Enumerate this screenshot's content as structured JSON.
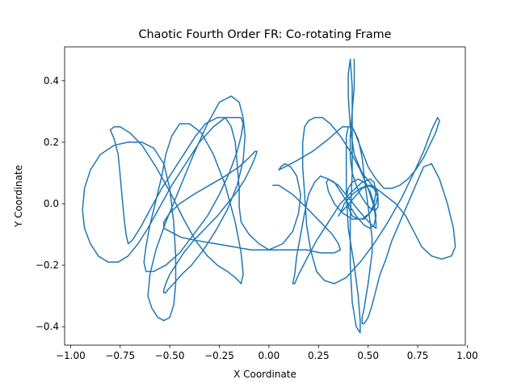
{
  "chart_data": {
    "type": "line",
    "title": "Chaotic Fourth Order FR: Co-rotating Frame",
    "xlabel": "X Coordinate",
    "ylabel": "Y Coordinate",
    "xlim": [
      -1.03,
      0.99
    ],
    "ylim": [
      -0.46,
      0.51
    ],
    "xticks": [
      -1.0,
      -0.75,
      -0.5,
      -0.25,
      0.0,
      0.25,
      0.5,
      0.75,
      1.0
    ],
    "xtick_labels": [
      "−1.00",
      "−0.75",
      "−0.50",
      "−0.25",
      "0.00",
      "0.25",
      "0.50",
      "0.75",
      "1.00"
    ],
    "yticks": [
      -0.4,
      -0.2,
      0.0,
      0.2,
      0.4
    ],
    "ytick_labels": [
      "−0.4",
      "−0.2",
      "0.0",
      "0.2",
      "0.4"
    ],
    "grid": false,
    "line_color": "#1f77b4",
    "series": [
      {
        "x": [
          0.02,
          0.05,
          0.12,
          0.2,
          0.26,
          0.32,
          0.35,
          0.36,
          0.33,
          0.26,
          0.19,
          0.14,
          0.1,
          0.06,
          0.0,
          -0.05,
          -0.1,
          -0.14,
          -0.15,
          -0.15,
          -0.16,
          -0.17,
          -0.19,
          -0.22,
          -0.26,
          -0.32,
          -0.37,
          -0.42,
          -0.48,
          -0.54,
          -0.6,
          -0.65,
          -0.69,
          -0.71,
          -0.72,
          -0.73,
          -0.74,
          -0.75,
          -0.76,
          -0.78,
          -0.8,
          -0.78,
          -0.75,
          -0.7,
          -0.64,
          -0.57,
          -0.5,
          -0.43,
          -0.37,
          -0.31,
          -0.26,
          -0.21,
          -0.17,
          -0.14,
          -0.13,
          -0.14,
          -0.17,
          -0.22,
          -0.28,
          -0.34,
          -0.4,
          -0.45,
          -0.49,
          -0.52,
          -0.54,
          -0.57,
          -0.6,
          -0.62,
          -0.63,
          -0.62,
          -0.58,
          -0.52,
          -0.45,
          -0.38,
          -0.31,
          -0.25,
          -0.2,
          -0.16,
          -0.14,
          -0.13,
          -0.14,
          -0.17,
          -0.22,
          -0.28,
          -0.35,
          -0.42,
          -0.49,
          -0.55,
          -0.61,
          -0.66,
          -0.71,
          -0.76,
          -0.81,
          -0.86,
          -0.9,
          -0.93,
          -0.94,
          -0.93,
          -0.9,
          -0.85,
          -0.78,
          -0.71,
          -0.64,
          -0.58,
          -0.53,
          -0.5,
          -0.48,
          -0.47,
          -0.47,
          -0.48,
          -0.5,
          -0.53,
          -0.56,
          -0.59,
          -0.61,
          -0.6,
          -0.57,
          -0.52,
          -0.45,
          -0.38,
          -0.31,
          -0.25,
          -0.19,
          -0.15,
          -0.13,
          -0.12,
          -0.13,
          -0.16,
          -0.21,
          -0.27,
          -0.33,
          -0.39,
          -0.44,
          -0.48,
          -0.51,
          -0.52,
          -0.53,
          -0.53,
          -0.52,
          -0.5,
          -0.47,
          -0.43,
          -0.38,
          -0.32,
          -0.26,
          -0.21,
          -0.16,
          -0.12,
          -0.09,
          -0.07,
          -0.06,
          -0.07,
          -0.1,
          -0.15,
          -0.22,
          -0.3,
          -0.38,
          -0.45,
          -0.5,
          -0.53,
          -0.53,
          -0.5,
          -0.44,
          -0.36,
          -0.27,
          -0.18,
          -0.09,
          0.0,
          0.07,
          0.12,
          0.15,
          0.16,
          0.14,
          0.11,
          0.08,
          0.06,
          0.05,
          0.05,
          0.08,
          0.14,
          0.22,
          0.3,
          0.37,
          0.42,
          0.45,
          0.47,
          0.48,
          0.49,
          0.5,
          0.51,
          0.52,
          0.52,
          0.51,
          0.5,
          0.49,
          0.48,
          0.47,
          0.47,
          0.48,
          0.5,
          0.52,
          0.54,
          0.56,
          0.59,
          0.62,
          0.66,
          0.7,
          0.74,
          0.78,
          0.82,
          0.86,
          0.9,
          0.93,
          0.94,
          0.92,
          0.87,
          0.82,
          0.77,
          0.73,
          0.69,
          0.64,
          0.58,
          0.52,
          0.47,
          0.43,
          0.41,
          0.4,
          0.4,
          0.41,
          0.42,
          0.42,
          0.42,
          0.41,
          0.41,
          0.42,
          0.44,
          0.46,
          0.46,
          0.45,
          0.43,
          0.4,
          0.39,
          0.39,
          0.39,
          0.4,
          0.42,
          0.44,
          0.47,
          0.5,
          0.54,
          0.58,
          0.62,
          0.66,
          0.7,
          0.74,
          0.78,
          0.81,
          0.84,
          0.86,
          0.85,
          0.82,
          0.78,
          0.73,
          0.67,
          0.6,
          0.53,
          0.46,
          0.39,
          0.33,
          0.28,
          0.24,
          0.21,
          0.19,
          0.18,
          0.17,
          0.17,
          0.18,
          0.2,
          0.23,
          0.27,
          0.31,
          0.36,
          0.41,
          0.46,
          0.5,
          0.53,
          0.54,
          0.54,
          0.52,
          0.49,
          0.45,
          0.4,
          0.35,
          0.3,
          0.26,
          0.23,
          0.2,
          0.18,
          0.16,
          0.14,
          0.13,
          0.12,
          0.13,
          0.15,
          0.19,
          0.24,
          0.3,
          0.36,
          0.42,
          0.47,
          0.51,
          0.53,
          0.54,
          0.53,
          0.51,
          0.48,
          0.45,
          0.42,
          0.4,
          0.39,
          0.4,
          0.42,
          0.45,
          0.48,
          0.51,
          0.53,
          0.54,
          0.53,
          0.51,
          0.48,
          0.44,
          0.4,
          0.36,
          0.33,
          0.3,
          0.29,
          0.3,
          0.33,
          0.37,
          0.42,
          0.47,
          0.51,
          0.54,
          0.55,
          0.54,
          0.51,
          0.47,
          0.43,
          0.39,
          0.36,
          0.35,
          0.36,
          0.38,
          0.42,
          0.46,
          0.5,
          0.53,
          0.55,
          0.55,
          0.54,
          0.52,
          0.49,
          0.46,
          0.44,
          0.42,
          0.41,
          0.41,
          0.42,
          0.43,
          0.43,
          0.43
        ],
        "y": [
          0.06,
          0.06,
          0.03,
          -0.02,
          -0.06,
          -0.1,
          -0.13,
          -0.15,
          -0.16,
          -0.16,
          -0.15,
          -0.15,
          -0.15,
          -0.15,
          -0.15,
          -0.13,
          -0.1,
          -0.06,
          -0.01,
          0.05,
          0.13,
          0.2,
          0.25,
          0.28,
          0.28,
          0.26,
          0.22,
          0.17,
          0.11,
          0.05,
          -0.02,
          -0.08,
          -0.12,
          -0.13,
          -0.1,
          -0.05,
          0.02,
          0.09,
          0.16,
          0.21,
          0.24,
          0.25,
          0.25,
          0.23,
          0.19,
          0.12,
          0.04,
          -0.05,
          -0.12,
          -0.17,
          -0.2,
          -0.22,
          -0.24,
          -0.26,
          -0.23,
          -0.16,
          -0.06,
          0.06,
          0.16,
          0.23,
          0.26,
          0.26,
          0.22,
          0.16,
          0.09,
          0.01,
          -0.07,
          -0.14,
          -0.19,
          -0.22,
          -0.22,
          -0.2,
          -0.16,
          -0.1,
          -0.04,
          0.03,
          0.1,
          0.17,
          0.22,
          0.26,
          0.28,
          0.28,
          0.28,
          0.25,
          0.2,
          0.13,
          0.06,
          -0.01,
          -0.08,
          -0.13,
          -0.17,
          -0.19,
          -0.19,
          -0.17,
          -0.13,
          -0.08,
          -0.02,
          0.05,
          0.11,
          0.16,
          0.19,
          0.2,
          0.2,
          0.18,
          0.13,
          0.05,
          -0.06,
          -0.17,
          -0.26,
          -0.33,
          -0.37,
          -0.38,
          -0.37,
          -0.34,
          -0.3,
          -0.23,
          -0.15,
          -0.06,
          0.05,
          0.16,
          0.26,
          0.33,
          0.35,
          0.33,
          0.28,
          0.22,
          0.14,
          0.06,
          -0.02,
          -0.09,
          -0.15,
          -0.2,
          -0.23,
          -0.26,
          -0.28,
          -0.29,
          -0.29,
          -0.28,
          -0.26,
          -0.23,
          -0.2,
          -0.16,
          -0.12,
          -0.08,
          -0.04,
          0.0,
          0.04,
          0.08,
          0.12,
          0.15,
          0.17,
          0.17,
          0.15,
          0.12,
          0.09,
          0.06,
          0.03,
          0.0,
          -0.03,
          -0.06,
          -0.08,
          -0.09,
          -0.11,
          -0.12,
          -0.13,
          -0.14,
          -0.15,
          -0.15,
          -0.13,
          -0.09,
          -0.03,
          0.03,
          0.09,
          0.12,
          0.13,
          0.12,
          0.11,
          0.11,
          0.12,
          0.14,
          0.17,
          0.21,
          0.25,
          0.25,
          0.21,
          0.15,
          0.09,
          0.04,
          -0.01,
          -0.06,
          -0.11,
          -0.16,
          -0.21,
          -0.26,
          -0.3,
          -0.34,
          -0.37,
          -0.39,
          -0.39,
          -0.37,
          -0.33,
          -0.28,
          -0.23,
          -0.18,
          -0.12,
          -0.06,
          0.0,
          0.06,
          0.12,
          0.13,
          0.08,
          0.0,
          -0.08,
          -0.14,
          -0.17,
          -0.18,
          -0.17,
          -0.14,
          -0.09,
          -0.04,
          0.0,
          0.03,
          0.06,
          0.1,
          0.16,
          0.25,
          0.35,
          0.42,
          0.47,
          0.38,
          0.25,
          0.1,
          -0.05,
          -0.2,
          -0.32,
          -0.4,
          -0.42,
          -0.38,
          -0.3,
          -0.2,
          -0.08,
          0.04,
          0.15,
          0.22,
          0.25,
          0.25,
          0.22,
          0.17,
          0.12,
          0.08,
          0.05,
          0.05,
          0.06,
          0.08,
          0.11,
          0.15,
          0.19,
          0.23,
          0.27,
          0.28,
          0.24,
          0.17,
          0.1,
          0.02,
          -0.06,
          -0.13,
          -0.19,
          -0.24,
          -0.26,
          -0.25,
          -0.22,
          -0.15,
          -0.07,
          0.03,
          0.12,
          0.2,
          0.25,
          0.27,
          0.28,
          0.28,
          0.26,
          0.22,
          0.17,
          0.11,
          0.05,
          -0.01,
          -0.06,
          -0.08,
          -0.07,
          -0.05,
          -0.02,
          0.02,
          0.06,
          0.08,
          0.09,
          0.07,
          0.03,
          -0.03,
          -0.1,
          -0.17,
          -0.23,
          -0.26,
          -0.26,
          -0.23,
          -0.18,
          -0.12,
          -0.06,
          0.0,
          0.04,
          0.07,
          0.08,
          0.07,
          0.04,
          0.0,
          -0.03,
          -0.05,
          -0.05,
          -0.04,
          -0.01,
          0.02,
          0.05,
          0.07,
          0.08,
          0.07,
          0.04,
          0.0,
          -0.04,
          -0.07,
          -0.08,
          -0.07,
          -0.04,
          0.0,
          0.04,
          0.07,
          0.08,
          0.07,
          0.04,
          0.0,
          -0.03,
          -0.05,
          -0.05,
          -0.03,
          0.0,
          0.03,
          0.05,
          0.06,
          0.05,
          0.02,
          -0.01,
          -0.03,
          -0.04,
          -0.03,
          0.0,
          0.03,
          0.05,
          0.06,
          0.05,
          0.02,
          -0.01,
          -0.02,
          -0.02,
          0.0,
          0.03,
          0.06,
          0.1,
          0.15,
          0.22,
          0.3,
          0.38,
          0.44,
          0.47
        ]
      }
    ]
  }
}
